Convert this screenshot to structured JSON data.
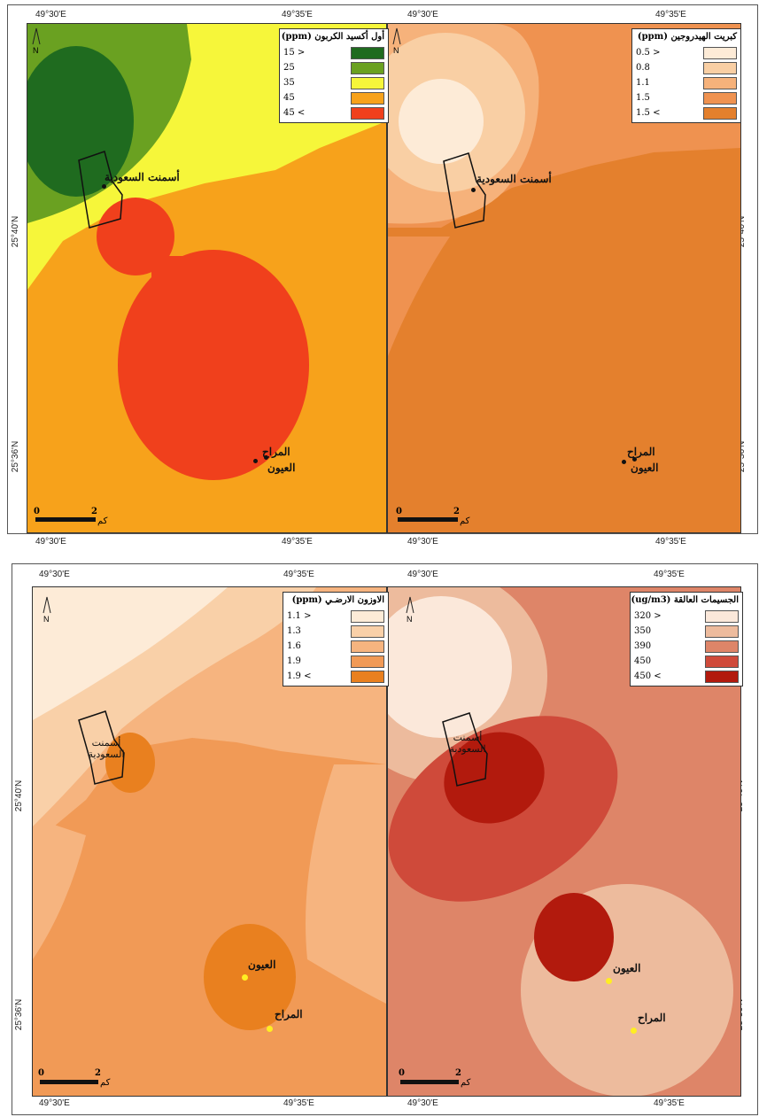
{
  "coords": {
    "lon1": "49°30'E",
    "lon2": "49°35'E",
    "lat1": "25°40'N",
    "lat2": "25°36'N"
  },
  "north": "N",
  "scale": {
    "zero": "0",
    "two": "2",
    "unit": "كم"
  },
  "places": {
    "cement": "أسمنت السعودية",
    "cement_line1": "أسمنت",
    "cement_line2": "السعودية",
    "cement_line2_alt": "السعودبة",
    "oyoun": "العيون",
    "marah": "المراح"
  },
  "maps": {
    "co": {
      "title": "أول أكسيد الكربون (ppm)",
      "items": [
        {
          "label": "15 >",
          "color": "#1f6b1f"
        },
        {
          "label": "25",
          "color": "#6aa121"
        },
        {
          "label": "35",
          "color": "#f6f63a"
        },
        {
          "label": "45",
          "color": "#f7a21b"
        },
        {
          "label": "45 <",
          "color": "#f0401c"
        }
      ]
    },
    "h2s": {
      "title": "كبريت الهيدروجين (ppm)",
      "items": [
        {
          "label": "0.5 >",
          "color": "#fdebd7"
        },
        {
          "label": "0.8",
          "color": "#f9cfa4"
        },
        {
          "label": "1.1",
          "color": "#f6b27b"
        },
        {
          "label": "1.5",
          "color": "#ef9250"
        },
        {
          "label": "1.5 <",
          "color": "#e4802d"
        }
      ]
    },
    "o3": {
      "title": "الاوزون الارضـي (ppm)",
      "items": [
        {
          "label": "1.1 >",
          "color": "#fdebd7"
        },
        {
          "label": "1.3",
          "color": "#f9d0a8"
        },
        {
          "label": "1.6",
          "color": "#f6b47f"
        },
        {
          "label": "1.9",
          "color": "#f19a56"
        },
        {
          "label": "1.9 <",
          "color": "#e9801f"
        }
      ]
    },
    "pm": {
      "title": "الجسيمات العالقة (ug/m3)",
      "items": [
        {
          "label": "320 >",
          "color": "#fbe8da"
        },
        {
          "label": "350",
          "color": "#edbb9d"
        },
        {
          "label": "390",
          "color": "#de8568"
        },
        {
          "label": "450",
          "color": "#cf4a3a"
        },
        {
          "label": "450 <",
          "color": "#b21a0d"
        }
      ]
    }
  }
}
